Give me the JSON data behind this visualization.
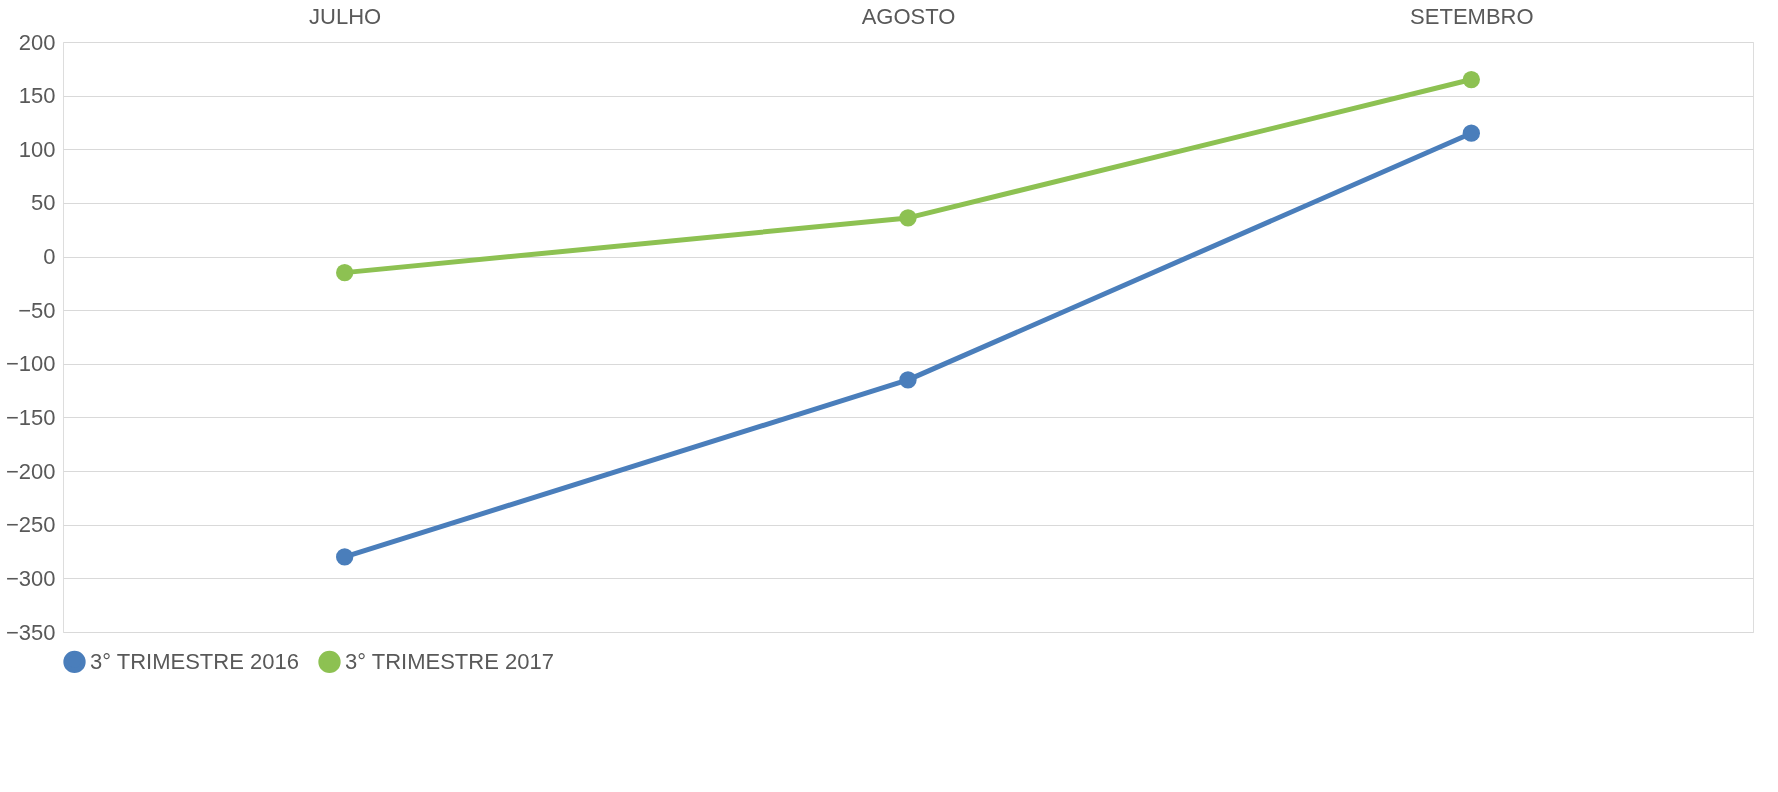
{
  "chart_data": {
    "type": "line",
    "categories": [
      "JULHO",
      "AGOSTO",
      "SETEMBRO"
    ],
    "series": [
      {
        "name": "3° TRIMESTRE 2016",
        "color": "#4a7ebb",
        "values": [
          -280,
          -115,
          115
        ]
      },
      {
        "name": "3° TRIMESTRE 2017",
        "color": "#8dc152",
        "values": [
          -15,
          36,
          165
        ]
      }
    ],
    "ylim": [
      -350,
      200
    ],
    "yticks": [
      -350,
      -300,
      -250,
      -200,
      -150,
      -100,
      -50,
      0,
      50,
      100,
      150,
      200
    ],
    "grid": "y",
    "legend": "bottom",
    "marker": "circle",
    "line_style": "solid"
  }
}
